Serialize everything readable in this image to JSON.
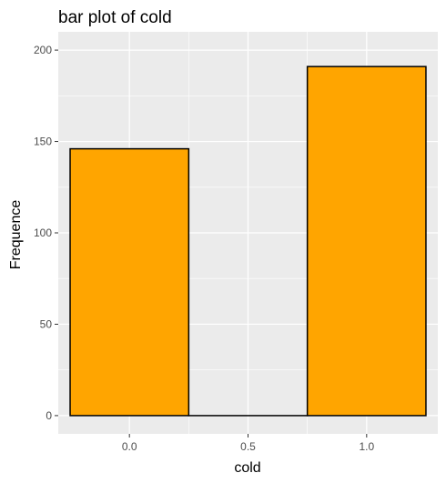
{
  "chart_data": {
    "type": "bar",
    "title": "bar plot of cold",
    "xlabel": "cold",
    "ylabel": "Frequence",
    "xlim": [
      -0.3,
      1.3
    ],
    "ylim": [
      -10,
      210
    ],
    "x_ticks": [
      0.0,
      0.5,
      1.0
    ],
    "x_tick_labels": [
      "0.0",
      "0.5",
      "1.0"
    ],
    "y_ticks": [
      0,
      50,
      100,
      150,
      200
    ],
    "y_tick_labels": [
      "0",
      "50",
      "100",
      "150",
      "200"
    ],
    "bars": [
      {
        "x_start": -0.25,
        "x_end": 0.25,
        "value": 146
      },
      {
        "x_start": 0.25,
        "x_end": 0.75,
        "value": 0
      },
      {
        "x_start": 0.75,
        "x_end": 1.25,
        "value": 191
      }
    ],
    "bar_fill": "#ffa500",
    "bar_outline": "#000000",
    "panel_background": "#ebebeb",
    "grid": true,
    "grid_color": "#ffffff"
  }
}
